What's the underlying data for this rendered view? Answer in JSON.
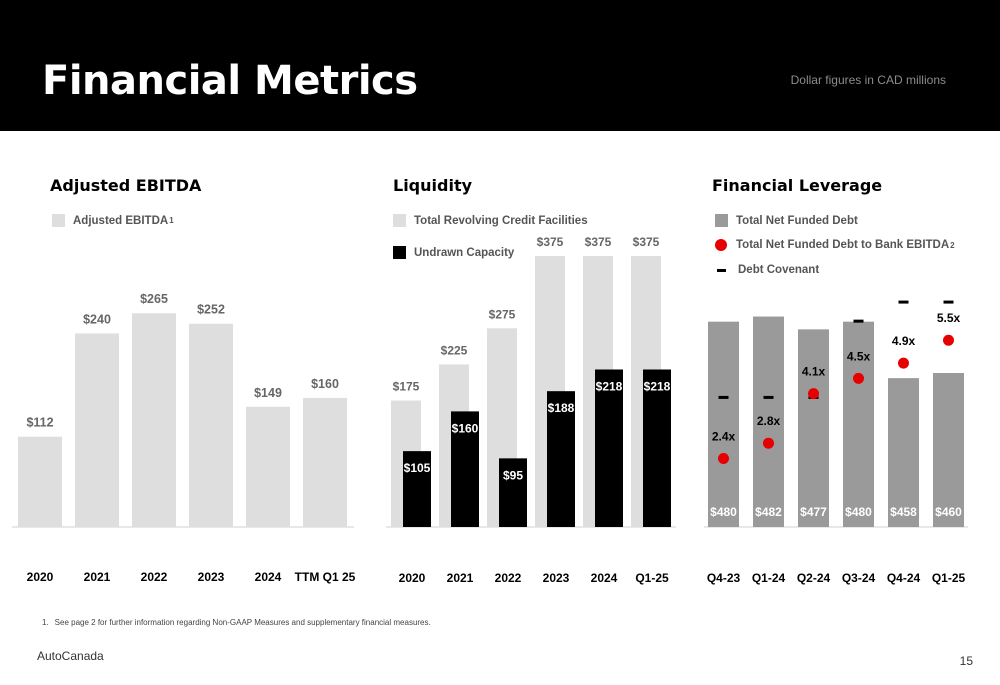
{
  "header": {
    "title": "Financial Metrics",
    "currency_note": "Dollar figures in CAD millions"
  },
  "colors": {
    "header_bg": "#000000",
    "light_bar": "#dedede",
    "dark_bar": "#000000",
    "gray_bar": "#9a9a9a",
    "red_dot": "#e60000"
  },
  "sections": {
    "ebitda": {
      "title": "Adjusted EBITDA",
      "legend": [
        {
          "label": "Adjusted EBITDA",
          "superscript": "1",
          "icon": "light-gray-square"
        }
      ]
    },
    "liquidity": {
      "title": "Liquidity",
      "legend": [
        {
          "label": "Total Revolving Credit Facilities",
          "icon": "light-gray-square"
        },
        {
          "label": "Undrawn Capacity",
          "icon": "black-square"
        }
      ]
    },
    "leverage": {
      "title": "Financial Leverage",
      "legend": [
        {
          "label": "Total Net Funded Debt",
          "icon": "gray-square"
        },
        {
          "label": "Total Net Funded Debt to Bank EBITDA",
          "superscript": "2",
          "icon": "red-dot"
        },
        {
          "label": "Debt Covenant",
          "icon": "black-dash"
        }
      ]
    }
  },
  "chart_data": [
    {
      "type": "bar",
      "title": "Adjusted EBITDA",
      "categories": [
        "2020",
        "2021",
        "2022",
        "2023",
        "2024",
        "TTM Q1 25"
      ],
      "series": [
        {
          "name": "Adjusted EBITDA",
          "values": [
            112,
            240,
            265,
            252,
            149,
            160
          ],
          "labels": [
            "$112",
            "$240",
            "$265",
            "$252",
            "$149",
            "$160"
          ]
        }
      ],
      "ylim": [
        0,
        300
      ],
      "grid": false
    },
    {
      "type": "bar",
      "title": "Liquidity",
      "categories": [
        "2020",
        "2021",
        "2022",
        "2023",
        "2024",
        "Q1-25"
      ],
      "series": [
        {
          "name": "Total Revolving Credit Facilities",
          "values": [
            175,
            225,
            275,
            375,
            375,
            375
          ],
          "labels": [
            "$175",
            "$225",
            "$275",
            "$375",
            "$375",
            "$375"
          ]
        },
        {
          "name": "Undrawn Capacity",
          "values": [
            105,
            160,
            95,
            188,
            218,
            218
          ],
          "labels": [
            "$105",
            "$160",
            "$95",
            "$188",
            "$218",
            "$218"
          ]
        }
      ],
      "ylim": [
        0,
        400
      ],
      "grid": false
    },
    {
      "type": "bar",
      "title": "Financial Leverage",
      "categories": [
        "Q4-23",
        "Q1-24",
        "Q2-24",
        "Q3-24",
        "Q4-24",
        "Q1-25"
      ],
      "series": [
        {
          "name": "Total Net Funded Debt",
          "kind": "bar",
          "values": [
            480,
            482,
            477,
            480,
            458,
            460
          ],
          "labels": [
            "$480",
            "$482",
            "$477",
            "$480",
            "$458",
            "$460"
          ]
        },
        {
          "name": "Total Net Funded Debt to Bank EBITDA",
          "kind": "dot",
          "values": [
            2.4,
            2.8,
            4.1,
            4.5,
            4.9,
            5.5
          ],
          "labels": [
            "2.4x",
            "2.8x",
            "4.1x",
            "4.5x",
            "4.9x",
            "5.5x"
          ]
        },
        {
          "name": "Debt Covenant",
          "kind": "dash",
          "values": [
            4.0,
            4.0,
            4.0,
            6.0,
            6.5,
            6.5
          ]
        }
      ],
      "bar_ylim": [
        400,
        490
      ],
      "ratio_ylim": [
        0,
        7
      ],
      "grid": false
    }
  ],
  "footnote": {
    "number": "1.",
    "text": "See page 2 for further information regarding Non-GAAP Measures and supplementary financial measures."
  },
  "footer": {
    "brand": "AutoCanada",
    "page_number": "15"
  }
}
